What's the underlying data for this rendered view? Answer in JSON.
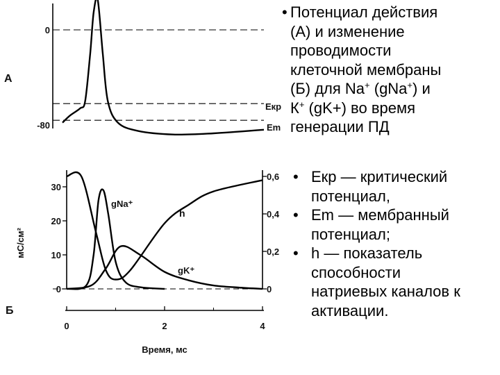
{
  "panel_a": {
    "label": "А",
    "ticks": [
      {
        "value": 0,
        "text": "0"
      },
      {
        "value": -80,
        "text": "-80"
      }
    ],
    "labels": {
      "ekr": "Екр",
      "em": "Em"
    }
  },
  "panel_b": {
    "label": "Б",
    "ylabel_left": "мС/см²",
    "left_ticks": [
      "30",
      "20",
      "10",
      "0"
    ],
    "right_ticks": [
      "0,6",
      "0,4",
      "0,2",
      "0"
    ],
    "x_ticks": [
      "0",
      "2",
      "4"
    ],
    "xlabel": "Время, мс",
    "series_labels": {
      "gna": "gNa⁺",
      "gk": "gK⁺",
      "h": "h"
    }
  },
  "intro": {
    "bullet": "•",
    "lines": [
      "Потенциал действия",
      "(А) и изменение",
      "проводимости",
      "клеточной мембраны"
    ],
    "line5_pre": "(Б) для Na",
    "line5_sup1": "+",
    "line5_mid": " (gNa",
    "line5_sup2": "+",
    "line5_post": ") и",
    "line6_pre": "К",
    "line6_sup": "+",
    "line6_post": " (gK+) во время",
    "line7": "генерации ПД"
  },
  "bullets": {
    "dot": "•",
    "items": [
      {
        "lines": [
          "Екр — критический",
          "потенциал,"
        ]
      },
      {
        "lines": [
          "Em — мембранный",
          "потенциал;"
        ]
      },
      {
        "lines": [
          "h — показатель",
          "способности",
          "натриевых каналов к",
          "активации."
        ]
      }
    ]
  },
  "chart_data": [
    {
      "type": "line",
      "panel": "А",
      "series": [
        {
          "name": "",
          "x": [
            0,
            0.15,
            0.35,
            0.45,
            0.55,
            0.62,
            0.7,
            0.8,
            0.9,
            1.1,
            1.5,
            2.2,
            3,
            4
          ],
          "y": [
            -78,
            -72,
            -66,
            -60,
            -20,
            15,
            25,
            -20,
            -60,
            -78,
            -85,
            -88,
            -87,
            -84
          ]
        }
      ],
      "reference_lines": [
        {
          "name": "0",
          "y": 0
        },
        {
          "name": "Екр",
          "y": -62
        },
        {
          "name": "Em",
          "y": -76
        }
      ]
    },
    {
      "type": "line",
      "panel": "Б",
      "xlabel": "Время, мс",
      "ylabel": "мС/см²",
      "xlim": [
        0,
        4
      ],
      "ylim_left": [
        0,
        35
      ],
      "ylim_right": [
        0,
        0.6
      ],
      "series": [
        {
          "name": "gNa⁺",
          "axis": "left",
          "x": [
            0,
            0.4,
            0.55,
            0.65,
            0.75,
            0.85,
            1,
            1.2,
            1.5,
            2
          ],
          "y": [
            0,
            1,
            10,
            26,
            29,
            22,
            8,
            2,
            0.5,
            0
          ]
        },
        {
          "name": "gK⁺",
          "axis": "left",
          "x": [
            0,
            0.5,
            0.8,
            1.1,
            1.5,
            2,
            2.5,
            3,
            3.5,
            4
          ],
          "y": [
            0,
            1,
            6,
            12.5,
            10,
            5,
            2.5,
            1,
            0.4,
            0
          ]
        },
        {
          "name": "h",
          "axis": "right",
          "x": [
            0,
            0.3,
            0.6,
            0.8,
            1,
            1.3,
            2,
            2.5,
            3,
            4
          ],
          "y": [
            0.6,
            0.6,
            0.3,
            0.1,
            0.05,
            0.1,
            0.35,
            0.45,
            0.52,
            0.58
          ]
        }
      ]
    }
  ]
}
